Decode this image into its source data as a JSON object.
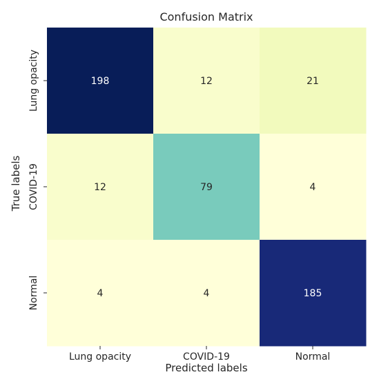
{
  "chart_data": {
    "type": "heatmap",
    "title": "Confusion Matrix",
    "xlabel": "Predicted labels",
    "ylabel": "True labels",
    "x_categories": [
      "Lung opacity",
      "COVID-19",
      "Normal"
    ],
    "y_categories": [
      "Lung opacity",
      "COVID-19",
      "Normal"
    ],
    "values": [
      [
        198,
        12,
        21
      ],
      [
        12,
        79,
        4
      ],
      [
        4,
        4,
        185
      ]
    ],
    "colormap": "YlGnBu",
    "colorbar": false,
    "grid": false
  },
  "colors": {
    "text_on_dark": "#ffffff",
    "text_on_light": "#262626"
  }
}
